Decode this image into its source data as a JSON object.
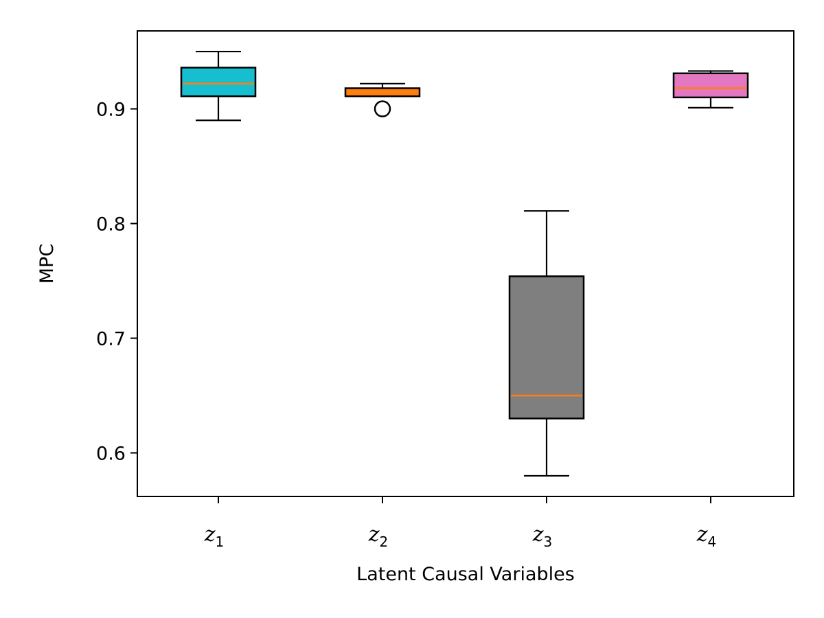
{
  "chart_data": {
    "type": "boxplot",
    "title": "",
    "xlabel": "Latent Causal Variables",
    "ylabel": "MPC",
    "ylim": [
      0.562,
      0.968
    ],
    "yticks": [
      0.6,
      0.7,
      0.8,
      0.9
    ],
    "ytick_labels": [
      "0.6",
      "0.7",
      "0.8",
      "0.9"
    ],
    "grid": false,
    "median_color": "#ff7f0e",
    "categories": [
      {
        "base": "z",
        "sub": "1"
      },
      {
        "base": "z",
        "sub": "2"
      },
      {
        "base": "z",
        "sub": "3"
      },
      {
        "base": "z",
        "sub": "4"
      }
    ],
    "boxes": [
      {
        "whisker_low": 0.89,
        "q1": 0.911,
        "median": 0.922,
        "q3": 0.936,
        "whisker_high": 0.95,
        "outliers": [],
        "color": "#17becf"
      },
      {
        "whisker_low": 0.911,
        "q1": 0.911,
        "median": 0.915,
        "q3": 0.918,
        "whisker_high": 0.922,
        "outliers": [
          0.9
        ],
        "color": "#ff7f0e"
      },
      {
        "whisker_low": 0.58,
        "q1": 0.63,
        "median": 0.65,
        "q3": 0.754,
        "whisker_high": 0.811,
        "outliers": [],
        "color": "#7f7f7f"
      },
      {
        "whisker_low": 0.901,
        "q1": 0.91,
        "median": 0.918,
        "q3": 0.931,
        "whisker_high": 0.933,
        "outliers": [],
        "color": "#e377c2"
      }
    ]
  }
}
